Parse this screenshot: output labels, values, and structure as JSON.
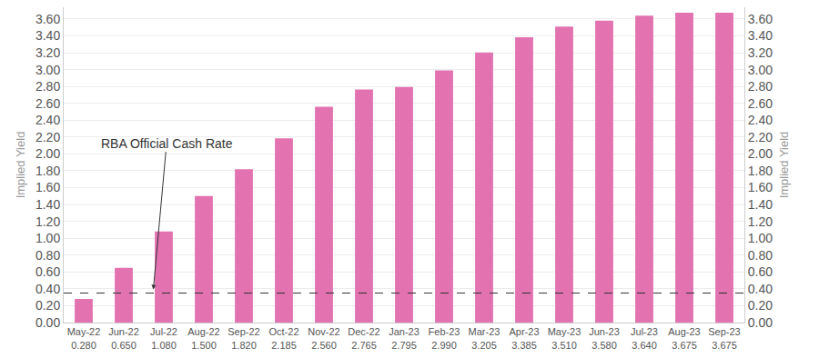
{
  "chart_data": {
    "type": "bar",
    "categories": [
      "May-22",
      "Jun-22",
      "Jul-22",
      "Aug-22",
      "Sep-22",
      "Oct-22",
      "Nov-22",
      "Dec-22",
      "Jan-23",
      "Feb-23",
      "Mar-23",
      "Apr-23",
      "May-23",
      "Jun-23",
      "Jul-23",
      "Aug-23",
      "Sep-23"
    ],
    "values": [
      0.28,
      0.65,
      1.08,
      1.5,
      1.82,
      2.185,
      2.56,
      2.765,
      2.795,
      2.99,
      3.205,
      3.385,
      3.51,
      3.58,
      3.64,
      3.675,
      3.675
    ],
    "value_labels": [
      "0.280",
      "0.650",
      "1.080",
      "1.500",
      "1.820",
      "2.185",
      "2.560",
      "2.765",
      "2.795",
      "2.990",
      "3.205",
      "3.385",
      "3.510",
      "3.580",
      "3.640",
      "3.675",
      "3.675"
    ],
    "color": "#e272b0",
    "y_label": "Implied Yield",
    "y2_label": "Implied Yield",
    "ylim": [
      0,
      3.74
    ],
    "yticks": [
      {
        "value": 0,
        "label": "0.00"
      },
      {
        "value": 0.2,
        "label": "0.20"
      },
      {
        "value": 0.4,
        "label": "0.40"
      },
      {
        "value": 0.6,
        "label": "0.60"
      },
      {
        "value": 0.8,
        "label": "0.80"
      },
      {
        "value": 1,
        "label": "1.00"
      },
      {
        "value": 1.2,
        "label": "1.20"
      },
      {
        "value": 1.4,
        "label": "1.40"
      },
      {
        "value": 1.6,
        "label": "1.60"
      },
      {
        "value": 1.8,
        "label": "1.80"
      },
      {
        "value": 2,
        "label": "2.00"
      },
      {
        "value": 2.2,
        "label": "2.20"
      },
      {
        "value": 2.4,
        "label": "2.40"
      },
      {
        "value": 2.6,
        "label": "2.60"
      },
      {
        "value": 2.8,
        "label": "2.80"
      },
      {
        "value": 3,
        "label": "3.00"
      },
      {
        "value": 3.2,
        "label": "3.20"
      },
      {
        "value": 3.4,
        "label": "3.40"
      },
      {
        "value": 3.6,
        "label": "3.60"
      }
    ],
    "y2lim": [
      0,
      3.74
    ],
    "y2ticks": [
      {
        "value": 0,
        "label": "0.00"
      },
      {
        "value": 0.2,
        "label": "0.20"
      },
      {
        "value": 0.4,
        "label": "0.40"
      },
      {
        "value": 0.6,
        "label": "0.60"
      },
      {
        "value": 0.8,
        "label": "0.80"
      },
      {
        "value": 1,
        "label": "1.00"
      },
      {
        "value": 1.2,
        "label": "1.20"
      },
      {
        "value": 1.4,
        "label": "1.40"
      },
      {
        "value": 1.6,
        "label": "1.60"
      },
      {
        "value": 1.8,
        "label": "1.80"
      },
      {
        "value": 2,
        "label": "2.00"
      },
      {
        "value": 2.2,
        "label": "2.20"
      },
      {
        "value": 2.4,
        "label": "2.40"
      },
      {
        "value": 2.6,
        "label": "2.60"
      },
      {
        "value": 2.8,
        "label": "2.80"
      },
      {
        "value": 3,
        "label": "3.00"
      },
      {
        "value": 3.2,
        "label": "3.20"
      },
      {
        "value": 3.4,
        "label": "3.40"
      },
      {
        "value": 3.6,
        "label": "3.60"
      }
    ],
    "annotations": [
      {
        "text": "RBA Official Cash Rate",
        "y": 0.35
      }
    ],
    "grid": true
  }
}
